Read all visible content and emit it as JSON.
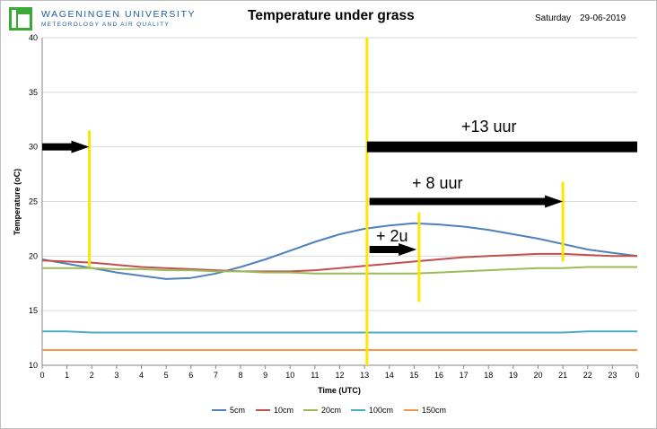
{
  "header": {
    "org": "WAGENINGEN UNIVERSITY",
    "dept": "METEOROLOGY AND AIR QUALITY",
    "title": "Temperature under grass",
    "day": "Saturday",
    "date": "29-06-2019"
  },
  "annotations": {
    "plus13": "+13 uur",
    "plus8": "+ 8 uur",
    "plus2": "+ 2u"
  },
  "colors": {
    "s5": "#4f81bd",
    "s10": "#c0504d",
    "s20": "#9bbb59",
    "s100": "#4bacc6",
    "s150": "#f79646",
    "highlight": "#ffe600",
    "arrow": "#000000"
  },
  "chart_data": {
    "type": "line",
    "title": "Temperature under grass",
    "xlabel": "Time (UTC)",
    "ylabel": "Temperature (oC)",
    "xticks": [
      "0",
      "1",
      "2",
      "3",
      "4",
      "5",
      "6",
      "7",
      "8",
      "9",
      "10",
      "11",
      "12",
      "13",
      "14",
      "15",
      "16",
      "17",
      "18",
      "19",
      "20",
      "21",
      "22",
      "23",
      "0"
    ],
    "ylim": [
      10,
      40
    ],
    "yticks": [
      10,
      15,
      20,
      25,
      30,
      35,
      40
    ],
    "grid": "horizontal",
    "legend": "bottom",
    "x": [
      0,
      1,
      2,
      3,
      4,
      5,
      6,
      7,
      8,
      9,
      10,
      11,
      12,
      13,
      14,
      15,
      16,
      17,
      18,
      19,
      20,
      21,
      22,
      23,
      24
    ],
    "series": [
      {
        "name": "5cm",
        "values": [
          19.7,
          19.3,
          18.9,
          18.5,
          18.2,
          17.9,
          18.0,
          18.4,
          19.0,
          19.7,
          20.5,
          21.3,
          22.0,
          22.5,
          22.8,
          23.0,
          22.9,
          22.7,
          22.4,
          22.0,
          21.6,
          21.1,
          20.6,
          20.3,
          20.0
        ]
      },
      {
        "name": "10cm",
        "values": [
          19.6,
          19.5,
          19.4,
          19.2,
          19.0,
          18.9,
          18.8,
          18.7,
          18.6,
          18.6,
          18.6,
          18.7,
          18.9,
          19.1,
          19.3,
          19.5,
          19.7,
          19.9,
          20.0,
          20.1,
          20.2,
          20.2,
          20.1,
          20.0,
          20.0
        ]
      },
      {
        "name": "20cm",
        "values": [
          18.9,
          18.9,
          18.9,
          18.8,
          18.8,
          18.7,
          18.7,
          18.6,
          18.6,
          18.5,
          18.5,
          18.4,
          18.4,
          18.4,
          18.4,
          18.4,
          18.5,
          18.6,
          18.7,
          18.8,
          18.9,
          18.9,
          19.0,
          19.0,
          19.0
        ]
      },
      {
        "name": "100cm",
        "values": [
          13.1,
          13.1,
          13.0,
          13.0,
          13.0,
          13.0,
          13.0,
          13.0,
          13.0,
          13.0,
          13.0,
          13.0,
          13.0,
          13.0,
          13.0,
          13.0,
          13.0,
          13.0,
          13.0,
          13.0,
          13.0,
          13.0,
          13.1,
          13.1,
          13.1
        ]
      },
      {
        "name": "150cm",
        "values": [
          11.4,
          11.4,
          11.4,
          11.4,
          11.4,
          11.4,
          11.4,
          11.4,
          11.4,
          11.4,
          11.4,
          11.4,
          11.4,
          11.4,
          11.4,
          11.4,
          11.4,
          11.4,
          11.4,
          11.4,
          11.4,
          11.4,
          11.4,
          11.4,
          11.4
        ]
      }
    ],
    "markers": [
      {
        "x": 1.9,
        "y_from": 19.0,
        "y_to": 31.5,
        "color": "#ffe600"
      },
      {
        "x": 13.1,
        "y_from": 10.0,
        "y_to": 40.0,
        "color": "#ffe600"
      },
      {
        "x": 15.2,
        "y_from": 15.8,
        "y_to": 24.0,
        "color": "#ffe600"
      },
      {
        "x": 21.0,
        "y_from": 19.5,
        "y_to": 26.8,
        "color": "#ffe600"
      }
    ],
    "arrows": [
      {
        "x_from": 0.0,
        "x_to": 1.9,
        "y": 30.0,
        "head": true
      },
      {
        "x_from": 13.1,
        "x_to": 24.0,
        "y": 30.0,
        "head": false
      },
      {
        "x_from": 13.2,
        "x_to": 21.0,
        "y": 25.0,
        "head": true
      },
      {
        "x_from": 13.2,
        "x_to": 15.1,
        "y": 20.6,
        "head": true
      }
    ]
  }
}
